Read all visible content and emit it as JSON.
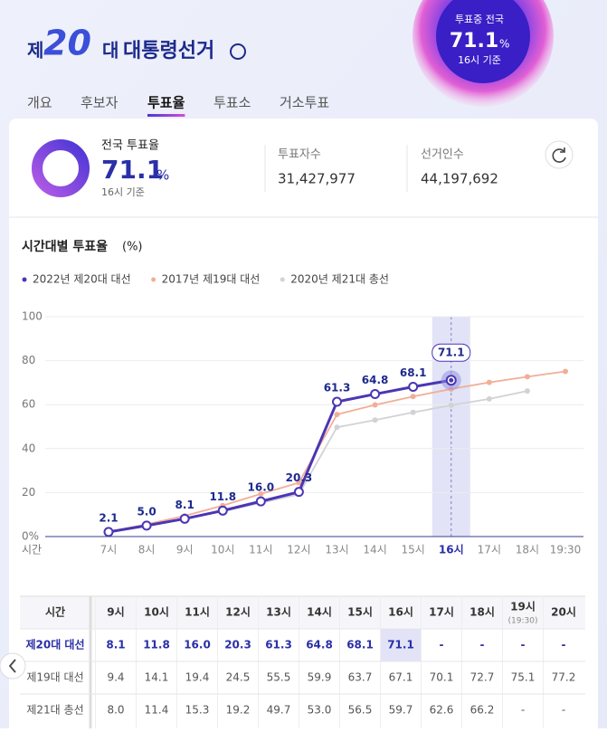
{
  "header": {
    "prefix": "제",
    "number": "20",
    "suffix": "대",
    "title": "대통령선거"
  },
  "badge": {
    "label": "투표중 전국",
    "rate": 71.1,
    "unit": "%",
    "basis": "16시 기준"
  },
  "tabs": [
    "개요",
    "후보자",
    "투표율",
    "투표소",
    "거소투표"
  ],
  "active_tab": 2,
  "summary": {
    "label": "전국 투표율",
    "rate": 71.1,
    "unit": "%",
    "basis": "16시 기준",
    "voters_label": "투표자수",
    "voters": "31,427,977",
    "electorate_label": "선거인수",
    "electorate": "44,197,692"
  },
  "chart_data": {
    "type": "line",
    "title": "시간대별 투표율",
    "unit": "(%)",
    "xlabel": "시간",
    "categories": [
      "7시",
      "8시",
      "9시",
      "10시",
      "11시",
      "12시",
      "13시",
      "14시",
      "15시",
      "16시",
      "17시",
      "18시",
      "19:30"
    ],
    "series": [
      {
        "name": "2022년 제20대 대선",
        "color": "#4a36b5",
        "values": [
          2.1,
          5.0,
          8.1,
          11.8,
          16.0,
          20.3,
          61.3,
          64.8,
          68.1,
          71.1,
          null,
          null,
          null
        ],
        "value_labels": [
          "2.1",
          "5.0",
          "8.1",
          "11.8",
          "16.0",
          "20.3",
          "61.3",
          "64.8",
          "68.1",
          "71.1",
          null,
          null,
          null
        ]
      },
      {
        "name": "2017년 제19대 대선",
        "color": "#f2ae97",
        "values": [
          2.2,
          5.6,
          9.4,
          14.1,
          19.4,
          24.5,
          55.5,
          59.9,
          63.7,
          67.1,
          70.1,
          72.7,
          75.1
        ]
      },
      {
        "name": "2020년 제21대 총선",
        "color": "#d2d2d6",
        "values": [
          2.0,
          4.7,
          8.0,
          11.4,
          15.3,
          19.2,
          49.7,
          53.0,
          56.5,
          59.7,
          62.6,
          66.2,
          null
        ]
      }
    ],
    "ylim": [
      0,
      100
    ],
    "yticks": [
      {
        "value": 0,
        "label": "0%"
      },
      20,
      40,
      60,
      80,
      100
    ],
    "grid": true
  },
  "table": {
    "header": [
      "시간",
      "9시",
      "10시",
      "11시",
      "12시",
      "13시",
      "14시",
      "15시",
      "16시",
      "17시",
      "18시",
      {
        "text": "19시",
        "note": "(19:30)"
      },
      "20시"
    ],
    "rows": [
      {
        "label": "제20대 대선",
        "values": [
          "8.1",
          "11.8",
          "16.0",
          "20.3",
          "61.3",
          "64.8",
          "68.1",
          "71.1",
          "-",
          "-",
          "-",
          "-"
        ]
      },
      {
        "label": "제19대 대선",
        "values": [
          "9.4",
          "14.1",
          "19.4",
          "24.5",
          "55.5",
          "59.9",
          "63.7",
          "67.1",
          "70.1",
          "72.7",
          "75.1",
          "77.2"
        ]
      },
      {
        "label": "제21대 총선",
        "values": [
          "8.0",
          "11.4",
          "15.3",
          "19.2",
          "49.7",
          "53.0",
          "56.5",
          "59.7",
          "62.6",
          "66.2",
          "-",
          "-"
        ]
      }
    ]
  }
}
